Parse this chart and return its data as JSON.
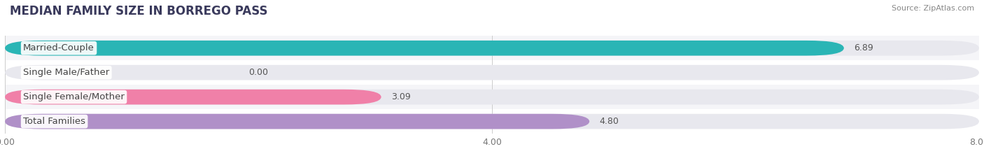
{
  "title": "MEDIAN FAMILY SIZE IN BORREGO PASS",
  "source": "Source: ZipAtlas.com",
  "categories": [
    "Married-Couple",
    "Single Male/Father",
    "Single Female/Mother",
    "Total Families"
  ],
  "values": [
    6.89,
    0.0,
    3.09,
    4.8
  ],
  "colors": [
    "#2ab5b5",
    "#a0b8e8",
    "#f080a8",
    "#b090c8"
  ],
  "xlim": [
    0,
    8.0
  ],
  "xticks": [
    0.0,
    4.0,
    8.0
  ],
  "xtick_labels": [
    "0.00",
    "4.00",
    "8.00"
  ],
  "bar_height": 0.62,
  "background_color": "#ffffff",
  "bar_bg_color": "#e8e8ee",
  "row_bg_colors": [
    "#f5f5f8",
    "#ffffff",
    "#f5f5f8",
    "#ffffff"
  ],
  "label_fontsize": 9.5,
  "title_fontsize": 12,
  "value_label_fontsize": 9
}
